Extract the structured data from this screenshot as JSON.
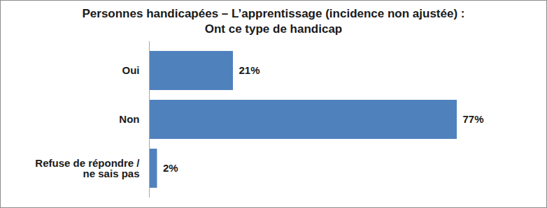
{
  "chart_data": {
    "type": "bar",
    "title": "Personnes handicapées –  L’apprentissage (incidence non ajustée) :\nOnt ce type de handicap",
    "orientation": "horizontal",
    "categories": [
      "Oui",
      "Non",
      "Refuse de répondre /\nne sais pas"
    ],
    "values": [
      21,
      77,
      2
    ],
    "value_labels": [
      "21%",
      "77%",
      "2%"
    ],
    "color": "#4f81bd",
    "data_labels": true,
    "tick_labels": "y",
    "grid": false
  }
}
